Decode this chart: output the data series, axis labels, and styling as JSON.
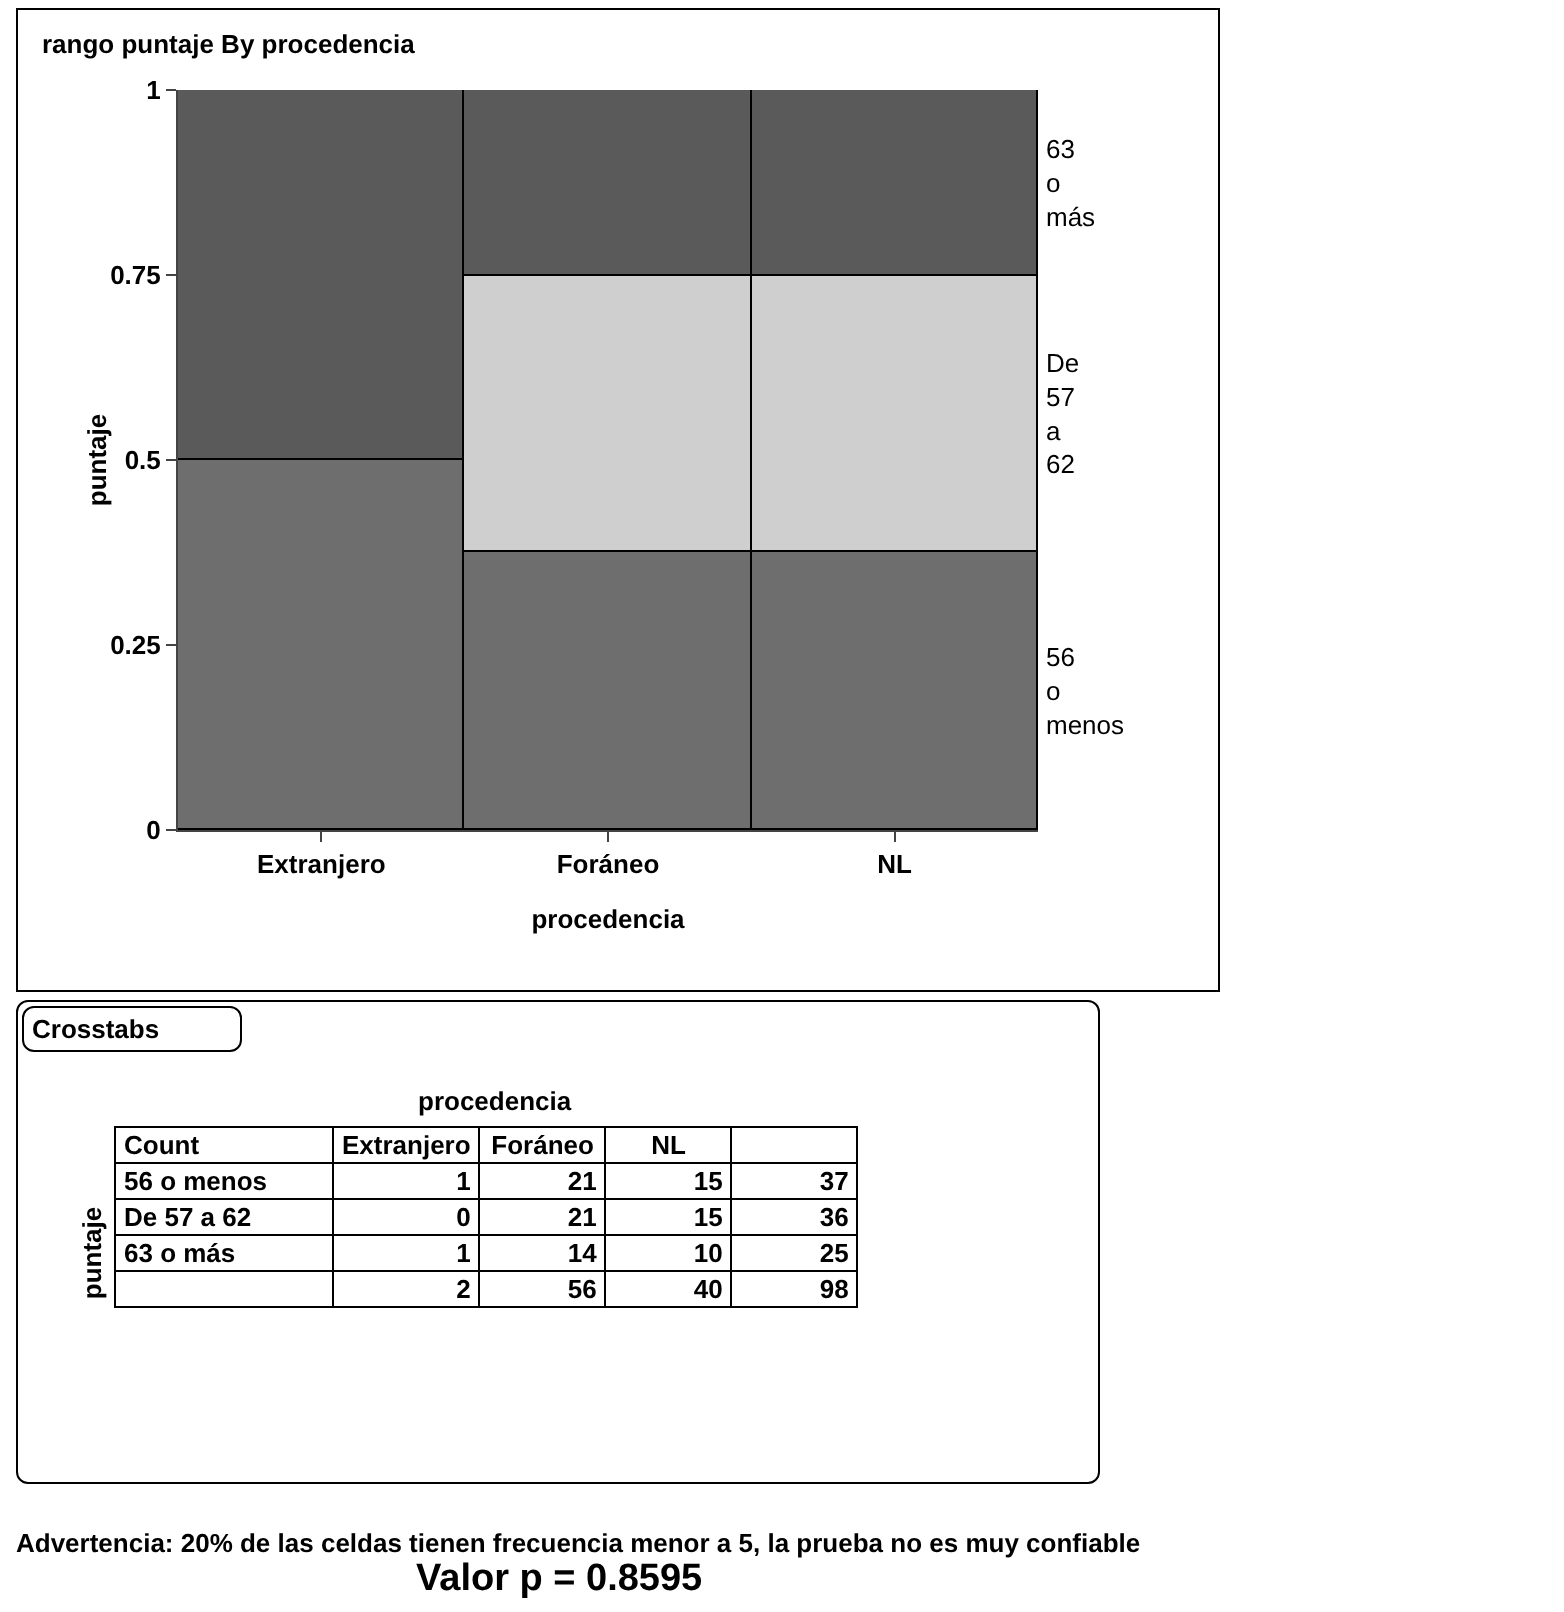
{
  "chart_data": [
    {
      "type": "bar",
      "title": "rango puntaje By procedencia",
      "xlabel": "procedencia",
      "ylabel": "puntaje",
      "categories": [
        "Extranjero",
        "Foráneo",
        "NL"
      ],
      "stacked": true,
      "ylim": [
        0,
        1
      ],
      "yticks": [
        0,
        0.25,
        0.5,
        0.75,
        1
      ],
      "legend": false,
      "series": [
        {
          "name": "56 o menos",
          "color": "#6e6e6e",
          "values": [
            0.5,
            0.375,
            0.375
          ]
        },
        {
          "name": "De 57 a 62",
          "color": "#cfcfcf",
          "values": [
            0,
            0.375,
            0.375
          ]
        },
        {
          "name": "63 o más",
          "color": "#5a5a5a",
          "values": [
            0.5,
            0.25,
            0.25
          ]
        }
      ]
    },
    {
      "type": "heatmap",
      "title": "Crosstabs",
      "xlabel": "procedencia",
      "ylabel": "puntaje",
      "categories": [
        "Extranjero",
        "Foráneo",
        "NL",
        null
      ],
      "y_categories": [
        "56 o menos",
        "De 57 a 62",
        "63 o más",
        null
      ],
      "cells": [
        [
          1,
          21,
          15,
          37
        ],
        [
          0,
          21,
          15,
          36
        ],
        [
          1,
          14,
          10,
          25
        ],
        [
          2,
          56,
          40,
          98
        ]
      ],
      "data_labels": true,
      "annotations": [
        "Count",
        "Advertencia: 20% de las celdas tienen frecuencia menor a 5, la prueba no es muy confiable",
        "Valor p = 0.8595"
      ]
    }
  ]
}
